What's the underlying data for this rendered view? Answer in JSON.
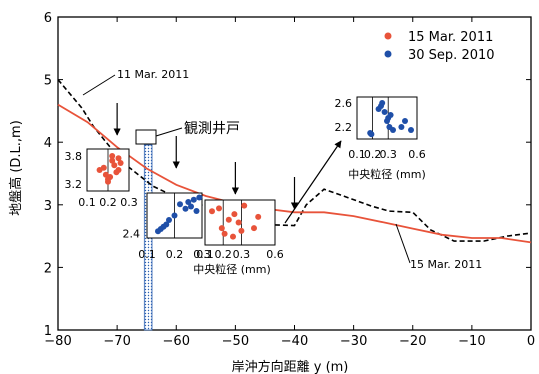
{
  "chart_data": {
    "type": "line",
    "xlabel": "岸沖方向距離 y (m)",
    "ylabel": "地盤高 (D.L.,m)",
    "xlim": [
      -80,
      0
    ],
    "ylim": [
      1,
      6
    ],
    "xticks": [
      "−80",
      "−70",
      "−60",
      "−50",
      "−40",
      "−30",
      "−20",
      "−10",
      "0"
    ],
    "yticks": [
      "1",
      "2",
      "3",
      "4",
      "5",
      "6"
    ],
    "legend_position": "top-right",
    "legend": [
      {
        "label": "15 Mar. 2011",
        "color": "#e8533a"
      },
      {
        "label": "30 Sep. 2010",
        "color": "#1f4fa8"
      }
    ],
    "series": [
      {
        "name": "11 Mar. 2011",
        "style": "dashed",
        "color": "#000000",
        "points": [
          [
            -80,
            5.0
          ],
          [
            -76,
            4.55
          ],
          [
            -74,
            4.25
          ],
          [
            -71,
            3.9
          ],
          [
            -68,
            3.6
          ],
          [
            -64,
            3.3
          ],
          [
            -60,
            3.12
          ],
          [
            -56,
            3.0
          ],
          [
            -52,
            2.9
          ],
          [
            -48,
            2.78
          ],
          [
            -44,
            2.68
          ],
          [
            -40,
            2.67
          ],
          [
            -38,
            3.0
          ],
          [
            -35,
            3.25
          ],
          [
            -32,
            3.15
          ],
          [
            -27,
            2.98
          ],
          [
            -24,
            2.9
          ],
          [
            -20,
            2.88
          ],
          [
            -17,
            2.6
          ],
          [
            -13,
            2.42
          ],
          [
            -8,
            2.42
          ],
          [
            -4,
            2.5
          ],
          [
            0,
            2.55
          ]
        ]
      },
      {
        "name": "15 Mar. 2011",
        "style": "solid",
        "color": "#e8533a",
        "points": [
          [
            -80,
            4.6
          ],
          [
            -75,
            4.32
          ],
          [
            -70,
            3.92
          ],
          [
            -65,
            3.58
          ],
          [
            -60,
            3.32
          ],
          [
            -55,
            3.14
          ],
          [
            -50,
            3.02
          ],
          [
            -45,
            2.94
          ],
          [
            -40,
            2.88
          ],
          [
            -35,
            2.88
          ],
          [
            -30,
            2.82
          ],
          [
            -25,
            2.72
          ],
          [
            -20,
            2.62
          ],
          [
            -15,
            2.52
          ],
          [
            -10,
            2.47
          ],
          [
            -5,
            2.47
          ],
          [
            0,
            2.4
          ]
        ]
      }
    ],
    "well": {
      "x_range": [
        -65.4,
        -64.1
      ],
      "label": "観測井戸"
    },
    "annotations": [
      {
        "text": "11 Mar. 2011"
      },
      {
        "text": "15 Mar. 2011"
      },
      {
        "text": "中央粒径 (mm)"
      },
      {
        "text": "中央粒径 (mm)"
      }
    ],
    "arrows_at_x": [
      -70,
      -60,
      -50,
      -40
    ],
    "insets": [
      {
        "id": "inset-a",
        "series_color": "#e8533a",
        "xlim": [
          0.1,
          0.3
        ],
        "ylim": [
          3.05,
          3.95
        ],
        "x_tick_labels": [
          "0.1",
          "0.2",
          "0.3"
        ],
        "y_tick_labels": [
          "3.8",
          "3.2"
        ],
        "y_tick_values": [
          3.8,
          3.2
        ],
        "points": [
          [
            0.16,
            3.5
          ],
          [
            0.18,
            3.55
          ],
          [
            0.19,
            3.4
          ],
          [
            0.2,
            3.3
          ],
          [
            0.21,
            3.35
          ],
          [
            0.22,
            3.8
          ],
          [
            0.22,
            3.7
          ],
          [
            0.23,
            3.6
          ],
          [
            0.24,
            3.45
          ],
          [
            0.25,
            3.75
          ],
          [
            0.26,
            3.65
          ],
          [
            0.25,
            3.5
          ],
          [
            0.2,
            3.25
          ]
        ]
      },
      {
        "id": "inset-b",
        "series_color": "#1f4fa8",
        "xlim": [
          0.1,
          0.3
        ],
        "ylim": [
          2.3,
          3.3
        ],
        "x_tick_labels": [
          "0.1",
          "0.2",
          "0.3"
        ],
        "y_tick_labels": [
          "2.4"
        ],
        "y_tick_values": [
          2.4
        ],
        "points": [
          [
            0.14,
            2.45
          ],
          [
            0.15,
            2.5
          ],
          [
            0.16,
            2.55
          ],
          [
            0.17,
            2.6
          ],
          [
            0.18,
            2.7
          ],
          [
            0.2,
            2.8
          ],
          [
            0.22,
            3.05
          ],
          [
            0.24,
            2.95
          ],
          [
            0.25,
            3.1
          ],
          [
            0.26,
            3.0
          ],
          [
            0.27,
            3.15
          ],
          [
            0.28,
            2.9
          ],
          [
            0.29,
            3.2
          ]
        ]
      },
      {
        "id": "inset-c",
        "series_color": "#e8533a",
        "xlim": [
          0.1,
          0.6
        ],
        "ylim": [
          2.3,
          3.1
        ],
        "x_tick_labels": [
          "0.1",
          "0.2",
          "0.3",
          "0.6"
        ],
        "x_tick_positions": [
          0.1,
          0.23,
          0.36,
          0.6
        ],
        "y_tick_labels": [],
        "y_tick_values": [],
        "points": [
          [
            0.15,
            2.9
          ],
          [
            0.2,
            2.95
          ],
          [
            0.22,
            2.6
          ],
          [
            0.24,
            2.5
          ],
          [
            0.27,
            2.75
          ],
          [
            0.3,
            2.45
          ],
          [
            0.31,
            2.85
          ],
          [
            0.34,
            2.7
          ],
          [
            0.36,
            2.55
          ],
          [
            0.38,
            3.0
          ],
          [
            0.45,
            2.6
          ],
          [
            0.48,
            2.8
          ]
        ]
      },
      {
        "id": "inset-d",
        "series_color": "#1f4fa8",
        "xlim": [
          0.1,
          0.6
        ],
        "ylim": [
          2.0,
          2.7
        ],
        "x_tick_labels": [
          "0.1",
          "0.2",
          "0.3",
          "0.6"
        ],
        "x_tick_positions": [
          0.1,
          0.23,
          0.36,
          0.6
        ],
        "y_tick_labels": [
          "2.6",
          "2.2"
        ],
        "y_tick_values": [
          2.6,
          2.2
        ],
        "points": [
          [
            0.21,
            2.1
          ],
          [
            0.22,
            2.08
          ],
          [
            0.28,
            2.5
          ],
          [
            0.3,
            2.55
          ],
          [
            0.31,
            2.6
          ],
          [
            0.33,
            2.45
          ],
          [
            0.35,
            2.3
          ],
          [
            0.37,
            2.2
          ],
          [
            0.38,
            2.4
          ],
          [
            0.4,
            2.15
          ],
          [
            0.47,
            2.2
          ],
          [
            0.5,
            2.3
          ],
          [
            0.55,
            2.15
          ],
          [
            0.36,
            2.35
          ]
        ]
      }
    ]
  }
}
